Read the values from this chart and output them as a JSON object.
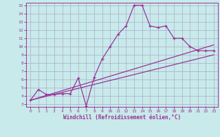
{
  "xlabel": "Windchill (Refroidissement éolien,°C)",
  "background_color": "#c8eaea",
  "grid_color": "#aaaacc",
  "line_color": "#993399",
  "xlim": [
    -0.5,
    23.5
  ],
  "ylim": [
    2.7,
    15.3
  ],
  "xticks": [
    0,
    1,
    2,
    3,
    4,
    5,
    6,
    7,
    8,
    9,
    10,
    11,
    12,
    13,
    14,
    15,
    16,
    17,
    18,
    19,
    20,
    21,
    22,
    23
  ],
  "yticks": [
    3,
    4,
    5,
    6,
    7,
    8,
    9,
    10,
    11,
    12,
    13,
    14,
    15
  ],
  "line1_x": [
    0,
    1,
    2,
    3,
    4,
    5,
    6,
    7,
    8,
    9,
    10,
    11,
    12,
    13,
    14,
    15,
    16,
    17,
    18,
    19,
    20,
    21,
    22,
    23
  ],
  "line1_y": [
    3.5,
    4.8,
    4.2,
    4.2,
    4.3,
    4.3,
    6.2,
    2.8,
    6.3,
    8.5,
    10.0,
    11.5,
    12.5,
    15.0,
    15.0,
    12.5,
    12.3,
    12.5,
    11.0,
    11.0,
    10.0,
    9.5,
    9.5,
    9.5
  ],
  "line2_x": [
    0,
    23
  ],
  "line2_y": [
    3.5,
    10.2
  ],
  "line3_x": [
    0,
    23
  ],
  "line3_y": [
    3.5,
    9.0
  ],
  "xlabel_fontsize": 5.5,
  "tick_fontsize": 4.5
}
